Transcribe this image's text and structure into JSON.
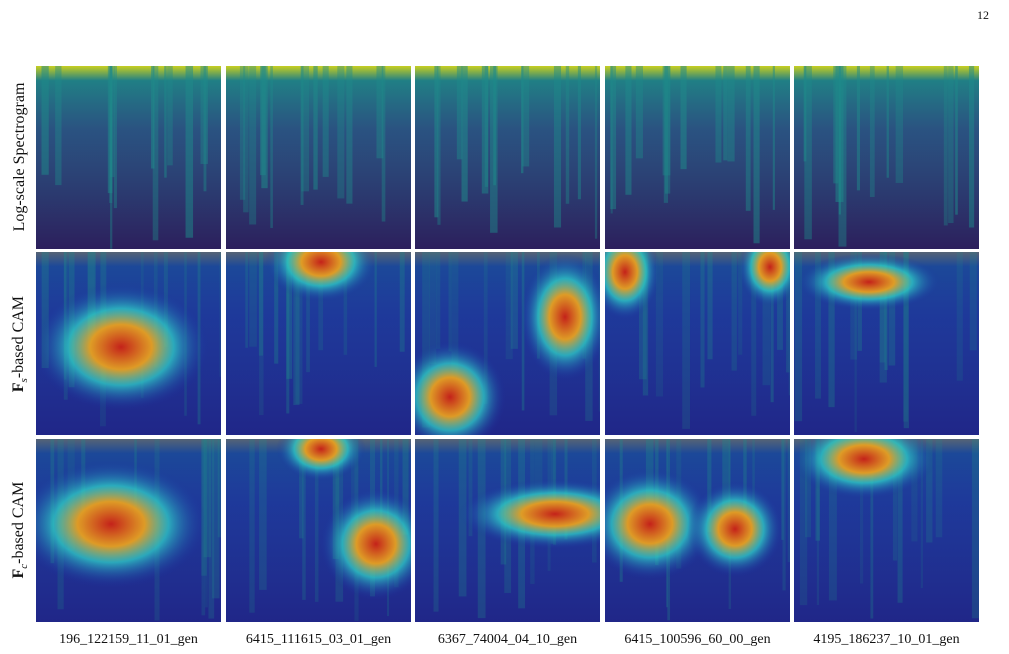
{
  "page_number": "12",
  "rows": [
    {
      "label": "Log-scale Spectrogram",
      "type": "spectrogram"
    },
    {
      "label_prefix": "F",
      "label_sub": "s",
      "label_suffix": "-based CAM",
      "type": "cam"
    },
    {
      "label_prefix": "F",
      "label_sub": "c",
      "label_suffix": "-based CAM",
      "type": "cam"
    }
  ],
  "columns": [
    "196_122159_11_01_gen",
    "6415_111615_03_01_gen",
    "6367_74004_04_10_gen",
    "6415_100596_60_00_gen",
    "4195_186237_10_01_gen"
  ],
  "colors": {
    "spectrogram_base": "#2c1f5c",
    "spectrogram_mid": "#1f8a8a",
    "spectrogram_high": "#d8e21a",
    "cam_low": "#1a2aa0",
    "cam_mid": "#2fd0c8",
    "cam_high": "#c4221a"
  }
}
